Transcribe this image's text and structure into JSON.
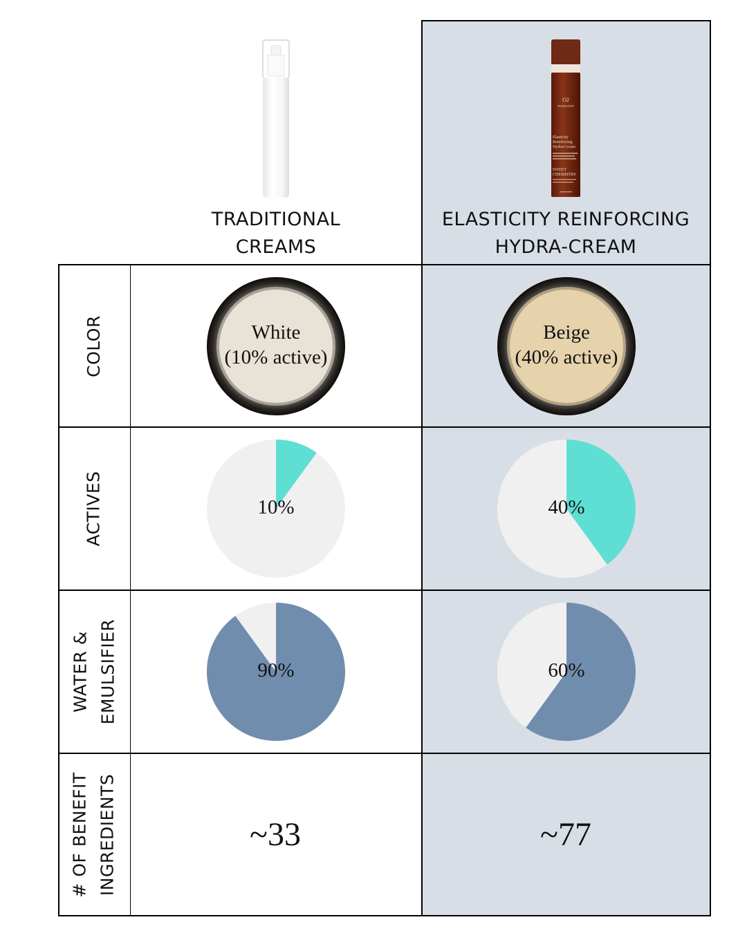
{
  "columns": [
    {
      "title_line1": "TRADITIONAL",
      "title_line2": "CREAMS",
      "color_label_line1": "White",
      "color_label_line2": "(10% active)",
      "cream_color": "#e9e2d6",
      "actives_pct": 10,
      "actives_label": "10%",
      "water_pct": 90,
      "water_label": "90%",
      "benefit_count": "~33"
    },
    {
      "title_line1": "ELASTICITY REINFORCING",
      "title_line2": "HYDRA-CREAM",
      "color_label_line1": "Beige",
      "color_label_line2": "(40% active)",
      "cream_color": "#e6d3ac",
      "actives_pct": 40,
      "actives_label": "40%",
      "water_pct": 60,
      "water_label": "60%",
      "benefit_count": "~77",
      "bottle_text": {
        "brand_line": "O2",
        "sub_line": "HYDRATION",
        "product_line1": "Elasticity",
        "product_line2": "Reinforcing",
        "product_line3": "Hydra-Cream",
        "maker_line1": "SWEET",
        "maker_line2": "CHEMISTRY"
      }
    }
  ],
  "rows": {
    "color": "COLOR",
    "actives": "ACTIVES",
    "water_line1": "WATER &",
    "water_line2": "EMULSIFIER",
    "benefit_line1": "# OF BENEFIT",
    "benefit_line2": "INGREDIENTS"
  },
  "colors": {
    "highlight_column": "#d8dee6",
    "actives": "#5fdfd4",
    "water": "#718dae",
    "pie_background": "#f0f0f0"
  }
}
